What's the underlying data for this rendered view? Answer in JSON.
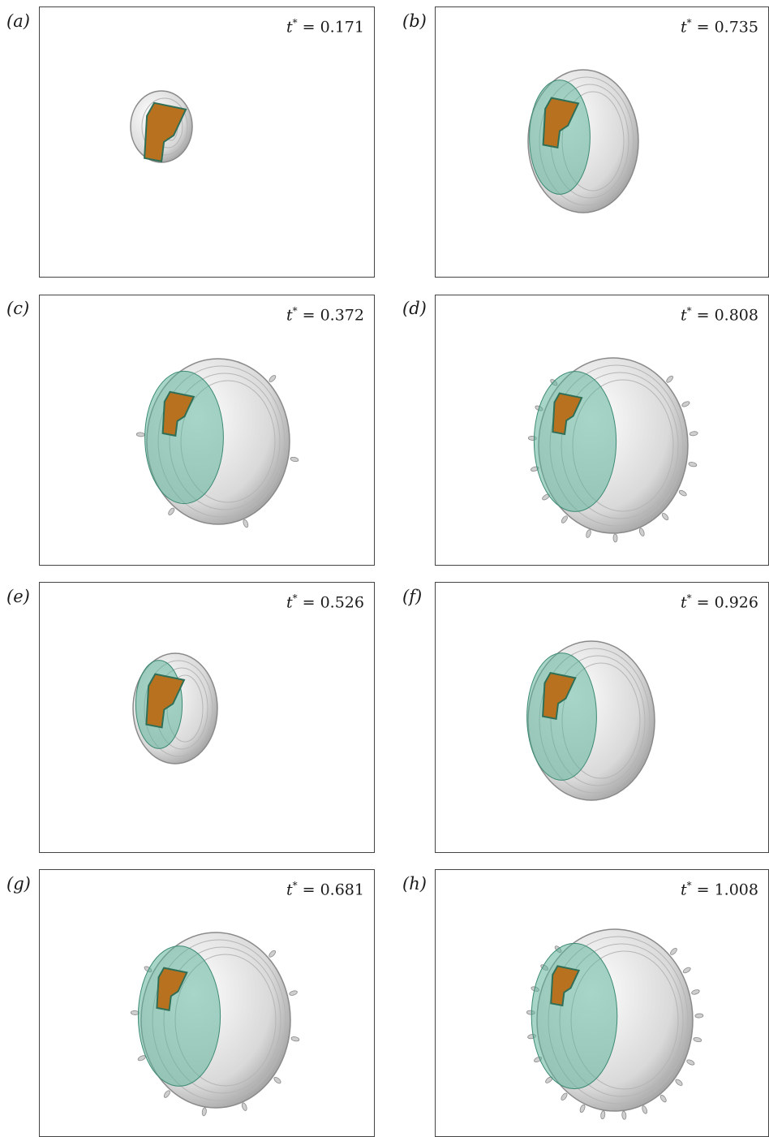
{
  "panels": [
    {
      "label": "(a)",
      "time": "0.171",
      "stage": 0
    },
    {
      "label": "(b)",
      "time": "0.735",
      "stage": 4
    },
    {
      "label": "(c)",
      "time": "0.372",
      "stage": 1
    },
    {
      "label": "(d)",
      "time": "0.808",
      "stage": 5
    },
    {
      "label": "(e)",
      "time": "0.526",
      "stage": 2
    },
    {
      "label": "(f)",
      "time": "0.926",
      "stage": 6
    },
    {
      "label": "(g)",
      "time": "0.681",
      "stage": 3
    },
    {
      "label": "(h)",
      "time": "1.008",
      "stage": 7
    }
  ],
  "time_symbol": "t",
  "colors": {
    "core": "#b8721f",
    "green": "#5fb39b",
    "shell": "#d9d9d9",
    "shell_edge": "#8a8a8a",
    "frame": "#444444"
  }
}
